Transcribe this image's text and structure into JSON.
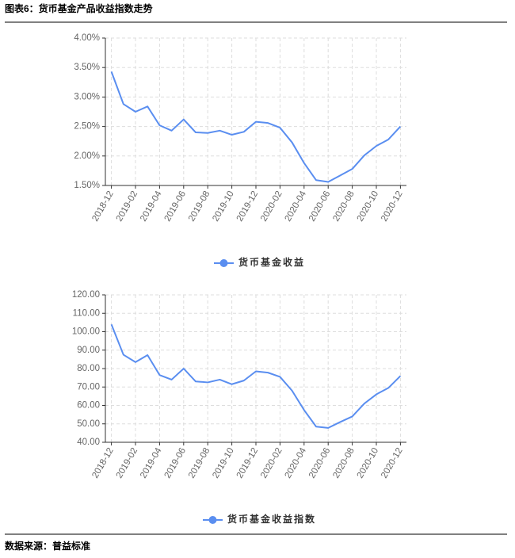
{
  "header": {
    "title": "图表6：货币基金产品收益指数走势"
  },
  "chart_data": [
    {
      "type": "line",
      "categories": [
        "2018-12",
        null,
        "2019-02",
        null,
        "2019-04",
        null,
        "2019-06",
        null,
        "2019-08",
        null,
        "2019-10",
        null,
        "2019-12",
        null,
        "2020-02",
        null,
        "2020-04",
        null,
        "2020-06",
        null,
        "2020-08",
        null,
        "2020-10",
        null,
        "2020-12"
      ],
      "series": [
        {
          "name": "货币基金收益",
          "color": "#5a8ef0",
          "values": [
            3.43,
            2.88,
            2.75,
            2.84,
            2.52,
            2.43,
            2.62,
            2.4,
            2.39,
            2.43,
            2.36,
            2.41,
            2.58,
            2.56,
            2.48,
            2.23,
            1.88,
            1.59,
            1.56,
            1.67,
            1.78,
            2.01,
            2.17,
            2.28,
            2.5
          ]
        }
      ],
      "ylim": [
        1.5,
        4.0
      ],
      "yticks": [
        {
          "value": 1.5,
          "label": "1.50%"
        },
        {
          "value": 2.0,
          "label": "2.00%"
        },
        {
          "value": 2.5,
          "label": "2.50%"
        },
        {
          "value": 3.0,
          "label": "3.00%"
        },
        {
          "value": 3.5,
          "label": "3.50%"
        },
        {
          "value": 4.0,
          "label": "4.00%"
        }
      ],
      "grid": true,
      "legend": "bottom"
    },
    {
      "type": "line",
      "categories": [
        "2018-12",
        null,
        "2019-02",
        null,
        "2019-04",
        null,
        "2019-06",
        null,
        "2019-08",
        null,
        "2019-10",
        null,
        "2019-12",
        null,
        "2020-02",
        null,
        "2020-04",
        null,
        "2020-06",
        null,
        "2020-08",
        null,
        "2020-10",
        null,
        "2020-12"
      ],
      "series": [
        {
          "name": "货币基金收益指数",
          "color": "#5a8ef0",
          "values": [
            104,
            87.5,
            83.5,
            87.3,
            76.5,
            74,
            80,
            73,
            72.5,
            74,
            71.5,
            73.5,
            78.5,
            77.8,
            75.5,
            68,
            57.5,
            48.5,
            47.8,
            51,
            54,
            61,
            66,
            69.5,
            76
          ]
        }
      ],
      "ylim": [
        40,
        120
      ],
      "yticks": [
        {
          "value": 40,
          "label": "40.00"
        },
        {
          "value": 50,
          "label": "50.00"
        },
        {
          "value": 60,
          "label": "60.00"
        },
        {
          "value": 70,
          "label": "70.00"
        },
        {
          "value": 80,
          "label": "80.00"
        },
        {
          "value": 90,
          "label": "90.00"
        },
        {
          "value": 100,
          "label": "100.00"
        },
        {
          "value": 110,
          "label": "110.00"
        },
        {
          "value": 120,
          "label": "120.00"
        }
      ],
      "grid": true,
      "legend": "bottom"
    }
  ],
  "footer": {
    "source": "数据来源：普益标准"
  }
}
